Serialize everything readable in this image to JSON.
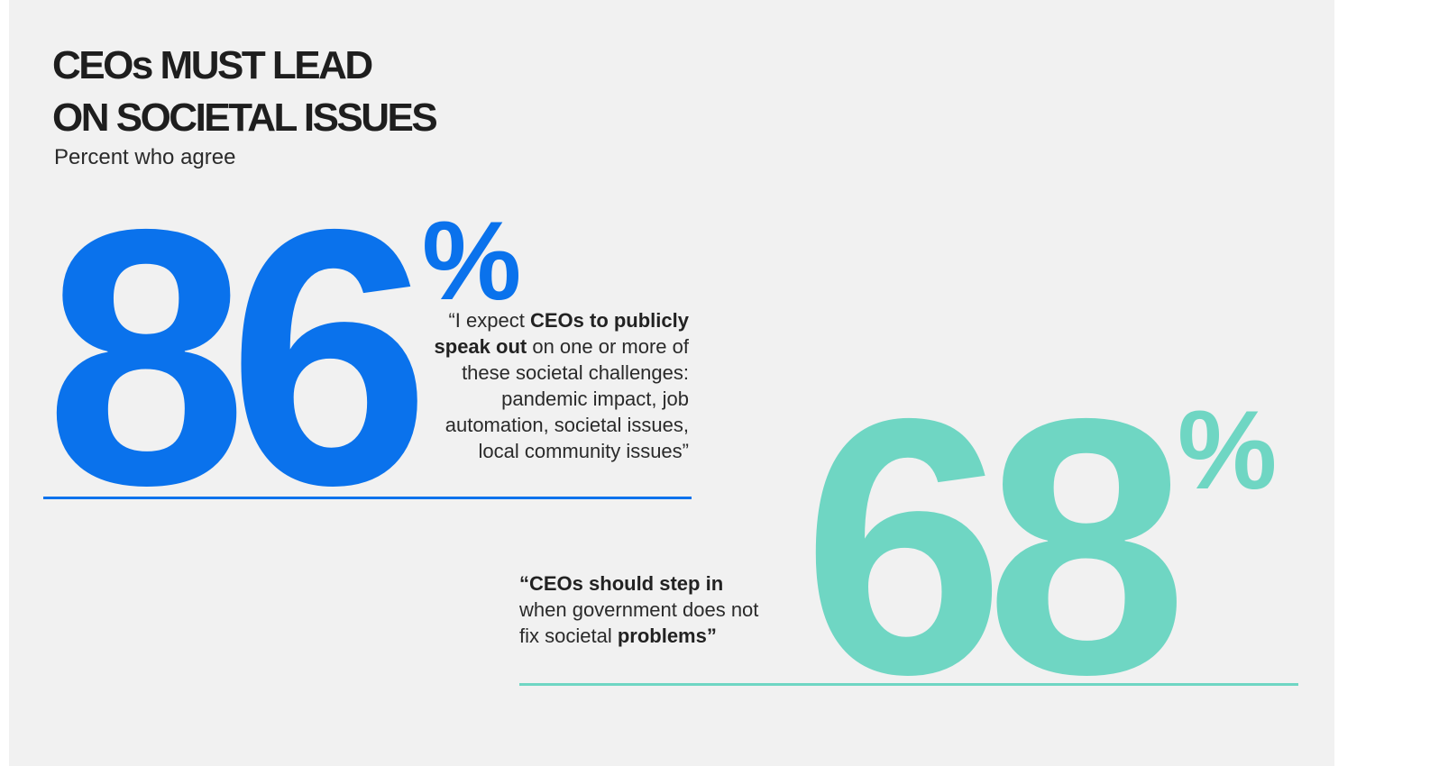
{
  "title_line1": "CEOs MUST LEAD",
  "title_line2": "ON SOCIETAL ISSUES",
  "subtitle": "Percent who agree",
  "colors": {
    "background": "#f1f1f1",
    "stat1": "#0a72ec",
    "stat2": "#6fd6c3",
    "text": "#1e1e1e"
  },
  "chart_data": {
    "type": "table",
    "title": "CEOs MUST LEAD ON SOCIETAL ISSUES",
    "subtitle": "Percent who agree",
    "unit": "%",
    "stats": [
      {
        "value": 86,
        "value_label": "86",
        "unit": "%",
        "quote_parts": [
          {
            "text": "“I expect ",
            "bold": false
          },
          {
            "text": "CEOs to publicly speak out",
            "bold": true
          },
          {
            "text": " on one or more of these societal challenges: pandemic impact, job automation, societal issues, local community issues”",
            "bold": false
          }
        ]
      },
      {
        "value": 68,
        "value_label": "68",
        "unit": "%",
        "quote_parts": [
          {
            "text": "“CEOs should step in",
            "bold": true
          },
          {
            "text": " when government does not fix societal ",
            "bold": false
          },
          {
            "text": "problems”",
            "bold": true
          }
        ]
      }
    ]
  }
}
